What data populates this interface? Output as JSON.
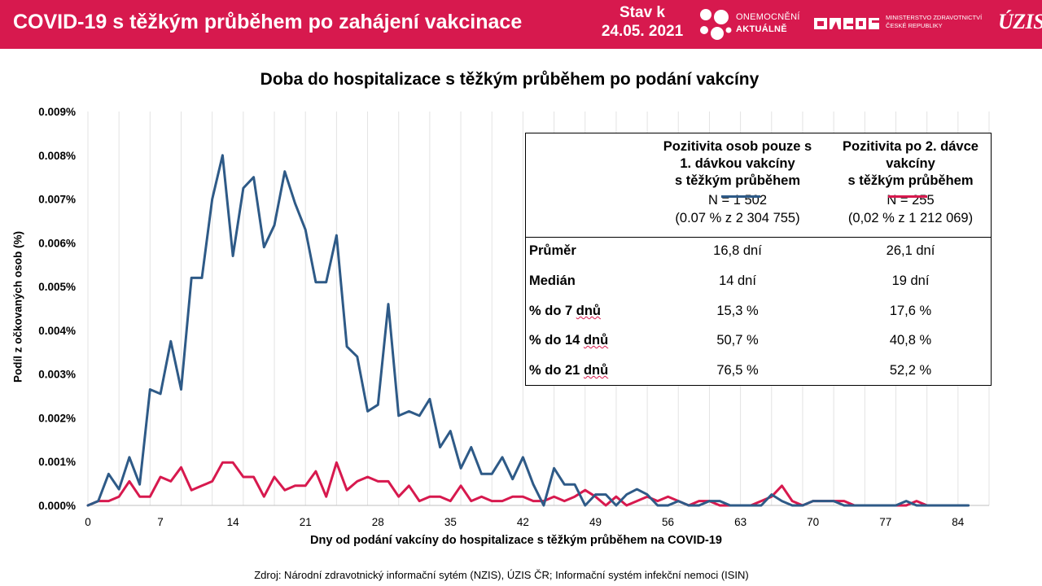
{
  "header": {
    "title": "COVID-19 s těžkým průběhem po zahájení vakcinace",
    "stav_label": "Stav k",
    "stav_date": "24.05. 2021",
    "logo1_line1": "ONEMOCNĚNÍ",
    "logo1_line2": "AKTUÁLNĚ",
    "logo2_line1": "MINISTERSTVO ZDRAVOTNICTVÍ",
    "logo2_line2": "ČESKÉ REPUBLIKY",
    "logo3": "ÚZIS"
  },
  "colors": {
    "header_bg": "#d7194e",
    "series1": "#2e5a87",
    "series2": "#d7194e"
  },
  "source": "Zdroj: Národní zdravotnický informační sytém (NZIS), ÚZIS ČR; Informační systém infekční nemoci (ISIN)",
  "chart_data": {
    "type": "line",
    "title": "Doba do hospitalizace s těžkým průběhem po podání vakcíny",
    "xlabel": "Dny od podání vakcíny do hospitalizace s těžkým průběhem na COVID-19",
    "ylabel": "Podíl z očkovaných osob (%)",
    "xlim": [
      0,
      87
    ],
    "ylim": [
      0,
      0.009
    ],
    "xticks": [
      0,
      7,
      14,
      21,
      28,
      35,
      42,
      49,
      56,
      63,
      70,
      77,
      84
    ],
    "yticks": [
      "0.000%",
      "0.001%",
      "0.002%",
      "0.003%",
      "0.004%",
      "0.005%",
      "0.006%",
      "0.007%",
      "0.008%",
      "0.009%"
    ],
    "grid": "vertical",
    "series": [
      {
        "name": "Pozitivita osob pouze s 1. dávkou vakcíny s těžkým průběhem",
        "color": "#2e5a87",
        "values": [
          0,
          0.0001,
          0.00072,
          0.00037,
          0.0011,
          0.00048,
          0.00265,
          0.00255,
          0.00375,
          0.00265,
          0.0052,
          0.0052,
          0.007,
          0.008,
          0.0057,
          0.00725,
          0.0075,
          0.0059,
          0.0064,
          0.00763,
          0.0069,
          0.0063,
          0.0051,
          0.0051,
          0.00617,
          0.00363,
          0.0034,
          0.00215,
          0.0023,
          0.0046,
          0.00205,
          0.00215,
          0.00205,
          0.00243,
          0.00133,
          0.0017,
          0.00085,
          0.00133,
          0.00072,
          0.00072,
          0.0011,
          0.0006,
          0.0011,
          0.00048,
          0,
          0.00085,
          0.00048,
          0.00048,
          0,
          0.00025,
          0.00025,
          0,
          0.00025,
          0.00037,
          0.00025,
          0,
          0,
          0.0001,
          0,
          0,
          0.0001,
          0.0001,
          0,
          0,
          0,
          0,
          0.00025,
          0.0001,
          0,
          0,
          0.0001,
          0.0001,
          0.0001,
          0,
          0,
          0,
          0,
          0,
          0,
          0.0001,
          0,
          0,
          0,
          0,
          0,
          0
        ]
      },
      {
        "name": "Pozitivita po 2. dávce vakcíny s těžkým průběhem",
        "color": "#d7194e",
        "values": [
          0,
          0.0001,
          0.0001,
          0.0002,
          0.00055,
          0.0002,
          0.0002,
          0.00065,
          0.00055,
          0.00087,
          0.00035,
          0.00045,
          0.00055,
          0.00098,
          0.00098,
          0.00065,
          0.00065,
          0.0002,
          0.00065,
          0.00035,
          0.00045,
          0.00045,
          0.00078,
          0.0002,
          0.00098,
          0.00035,
          0.00055,
          0.00065,
          0.00055,
          0.00055,
          0.0002,
          0.00045,
          0.0001,
          0.0002,
          0.0002,
          0.0001,
          0.00045,
          0.0001,
          0.0002,
          0.0001,
          0.0001,
          0.0002,
          0.0002,
          0.0001,
          0.0001,
          0.0002,
          0.0001,
          0.0002,
          0.00035,
          0.0002,
          0,
          0.0002,
          0,
          0.0001,
          0.0002,
          0.0001,
          0.0002,
          0.0001,
          0,
          0.0001,
          0.0001,
          0,
          0,
          0,
          0,
          0.0001,
          0.0002,
          0.00045,
          0.0001,
          0,
          0.0001,
          0.0001,
          0.0001,
          0.0001,
          0,
          0,
          0,
          0,
          0,
          0,
          0.0001,
          0
        ]
      }
    ],
    "table": {
      "col1": {
        "header": [
          "Pozitivita osob pouze s",
          "1. dávkou vakcíny",
          "s těžkým průběhem"
        ],
        "n": "N = 1 502",
        "share": "(0.07 % z 2 304 755)"
      },
      "col2": {
        "header": [
          "Pozitivita po 2. dávce",
          "vakcíny",
          "s těžkým průběhem"
        ],
        "n": "N = 255",
        "share": "(0,02 % z 1 212 069)"
      },
      "rows": [
        {
          "label": "Průměr",
          "v1": "16,8 dní",
          "v2": "26,1 dní"
        },
        {
          "label": "Medián",
          "v1": "14 dní",
          "v2": "19 dní"
        },
        {
          "label_prefix": "% do 7 ",
          "label_suffix": "dnů",
          "v1": "15,3 %",
          "v2": "17,6 %"
        },
        {
          "label_prefix": "% do 14 ",
          "label_suffix": "dnů",
          "v1": "50,7 %",
          "v2": "40,8 %"
        },
        {
          "label_prefix": "% do 21 ",
          "label_suffix": "dnů",
          "v1": "76,5 %",
          "v2": "52,2 %"
        }
      ]
    }
  }
}
